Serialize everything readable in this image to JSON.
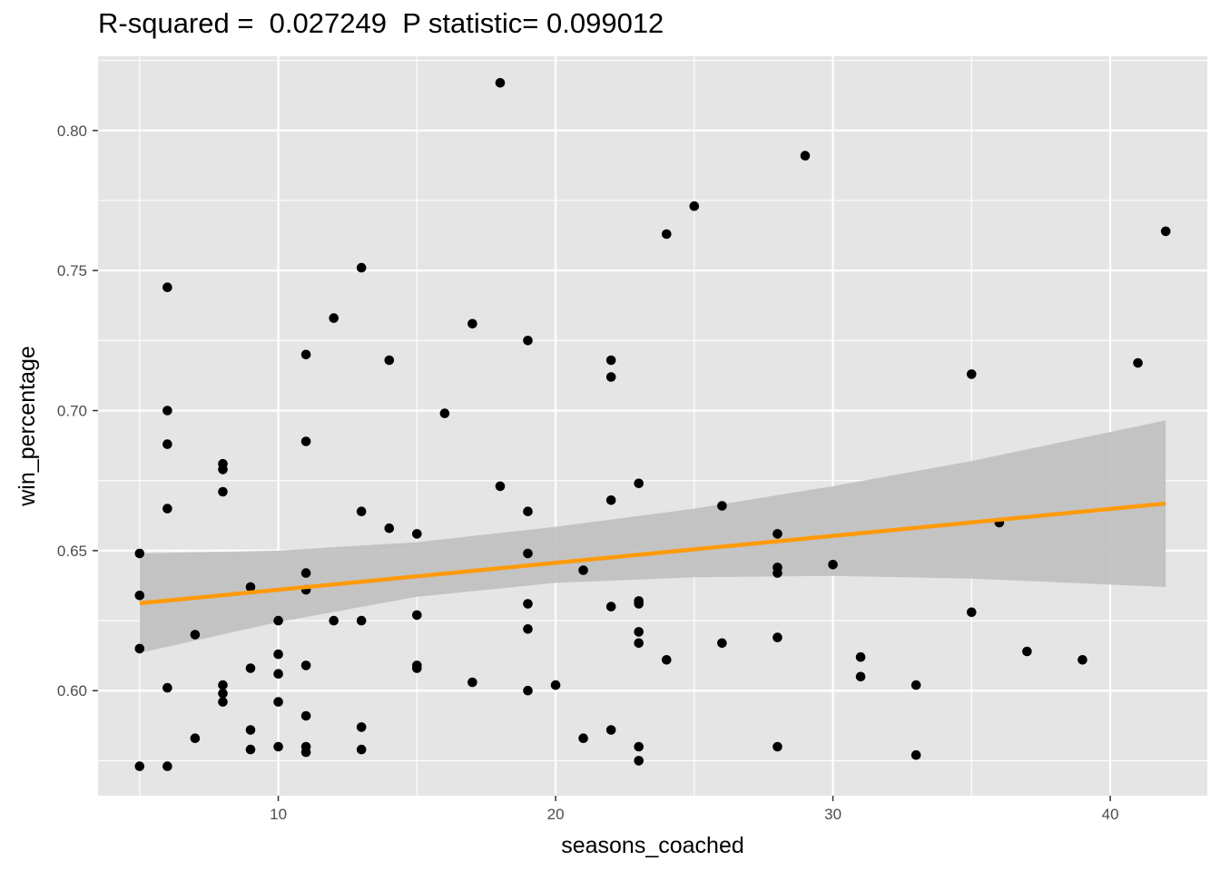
{
  "chart_data": {
    "type": "scatter",
    "title": "R-squared =  0.027249  P statistic= 0.099012",
    "xlabel": "seasons_coached",
    "ylabel": "win_percentage",
    "xlim": [
      3.5,
      43.5
    ],
    "ylim": [
      0.5625,
      0.8265
    ],
    "x_ticks": [
      10,
      20,
      30,
      40
    ],
    "y_ticks": [
      0.6,
      0.65,
      0.7,
      0.75,
      0.8
    ],
    "x_tick_labels": [
      "10",
      "20",
      "30",
      "40"
    ],
    "y_tick_labels": [
      "0.60",
      "0.65",
      "0.70",
      "0.75",
      "0.80"
    ],
    "grid": true,
    "colors": {
      "panel": "#e5e5e5",
      "grid": "#ffffff",
      "points": "#000000",
      "fit_line": "#ff9a0a",
      "ci_band": "#bfbfbf"
    },
    "points": [
      {
        "x": 5,
        "y": 0.649
      },
      {
        "x": 5,
        "y": 0.634
      },
      {
        "x": 5,
        "y": 0.615
      },
      {
        "x": 5,
        "y": 0.573
      },
      {
        "x": 6,
        "y": 0.744
      },
      {
        "x": 6,
        "y": 0.7
      },
      {
        "x": 6,
        "y": 0.688
      },
      {
        "x": 6,
        "y": 0.665
      },
      {
        "x": 6,
        "y": 0.601
      },
      {
        "x": 6,
        "y": 0.573
      },
      {
        "x": 7,
        "y": 0.62
      },
      {
        "x": 7,
        "y": 0.583
      },
      {
        "x": 8,
        "y": 0.681
      },
      {
        "x": 8,
        "y": 0.679
      },
      {
        "x": 8,
        "y": 0.671
      },
      {
        "x": 8,
        "y": 0.602
      },
      {
        "x": 8,
        "y": 0.599
      },
      {
        "x": 8,
        "y": 0.596
      },
      {
        "x": 9,
        "y": 0.637
      },
      {
        "x": 9,
        "y": 0.608
      },
      {
        "x": 9,
        "y": 0.586
      },
      {
        "x": 9,
        "y": 0.579
      },
      {
        "x": 10,
        "y": 0.625
      },
      {
        "x": 10,
        "y": 0.613
      },
      {
        "x": 10,
        "y": 0.606
      },
      {
        "x": 10,
        "y": 0.596
      },
      {
        "x": 10,
        "y": 0.58
      },
      {
        "x": 11,
        "y": 0.72
      },
      {
        "x": 11,
        "y": 0.689
      },
      {
        "x": 11,
        "y": 0.642
      },
      {
        "x": 11,
        "y": 0.636
      },
      {
        "x": 11,
        "y": 0.609
      },
      {
        "x": 11,
        "y": 0.591
      },
      {
        "x": 11,
        "y": 0.58
      },
      {
        "x": 11,
        "y": 0.578
      },
      {
        "x": 12,
        "y": 0.733
      },
      {
        "x": 12,
        "y": 0.625
      },
      {
        "x": 13,
        "y": 0.751
      },
      {
        "x": 13,
        "y": 0.664
      },
      {
        "x": 13,
        "y": 0.625
      },
      {
        "x": 13,
        "y": 0.587
      },
      {
        "x": 13,
        "y": 0.579
      },
      {
        "x": 14,
        "y": 0.718
      },
      {
        "x": 14,
        "y": 0.658
      },
      {
        "x": 15,
        "y": 0.656
      },
      {
        "x": 15,
        "y": 0.627
      },
      {
        "x": 15,
        "y": 0.609
      },
      {
        "x": 15,
        "y": 0.608
      },
      {
        "x": 16,
        "y": 0.699
      },
      {
        "x": 17,
        "y": 0.731
      },
      {
        "x": 17,
        "y": 0.603
      },
      {
        "x": 18,
        "y": 0.817
      },
      {
        "x": 18,
        "y": 0.673
      },
      {
        "x": 19,
        "y": 0.725
      },
      {
        "x": 19,
        "y": 0.664
      },
      {
        "x": 19,
        "y": 0.649
      },
      {
        "x": 19,
        "y": 0.631
      },
      {
        "x": 19,
        "y": 0.622
      },
      {
        "x": 19,
        "y": 0.6
      },
      {
        "x": 20,
        "y": 0.602
      },
      {
        "x": 21,
        "y": 0.643
      },
      {
        "x": 21,
        "y": 0.583
      },
      {
        "x": 22,
        "y": 0.718
      },
      {
        "x": 22,
        "y": 0.712
      },
      {
        "x": 22,
        "y": 0.668
      },
      {
        "x": 22,
        "y": 0.63
      },
      {
        "x": 22,
        "y": 0.586
      },
      {
        "x": 23,
        "y": 0.674
      },
      {
        "x": 23,
        "y": 0.632
      },
      {
        "x": 23,
        "y": 0.631
      },
      {
        "x": 23,
        "y": 0.621
      },
      {
        "x": 23,
        "y": 0.617
      },
      {
        "x": 23,
        "y": 0.58
      },
      {
        "x": 23,
        "y": 0.575
      },
      {
        "x": 24,
        "y": 0.763
      },
      {
        "x": 24,
        "y": 0.611
      },
      {
        "x": 25,
        "y": 0.773
      },
      {
        "x": 26,
        "y": 0.666
      },
      {
        "x": 26,
        "y": 0.617
      },
      {
        "x": 28,
        "y": 0.656
      },
      {
        "x": 28,
        "y": 0.644
      },
      {
        "x": 28,
        "y": 0.642
      },
      {
        "x": 28,
        "y": 0.619
      },
      {
        "x": 28,
        "y": 0.58
      },
      {
        "x": 29,
        "y": 0.791
      },
      {
        "x": 30,
        "y": 0.645
      },
      {
        "x": 31,
        "y": 0.612
      },
      {
        "x": 31,
        "y": 0.605
      },
      {
        "x": 33,
        "y": 0.602
      },
      {
        "x": 33,
        "y": 0.577
      },
      {
        "x": 35,
        "y": 0.713
      },
      {
        "x": 35,
        "y": 0.628
      },
      {
        "x": 36,
        "y": 0.66
      },
      {
        "x": 37,
        "y": 0.614
      },
      {
        "x": 39,
        "y": 0.611
      },
      {
        "x": 41,
        "y": 0.717
      },
      {
        "x": 42,
        "y": 0.764
      }
    ],
    "fit_line": {
      "x": [
        5,
        42
      ],
      "y": [
        0.6312,
        0.6668
      ]
    },
    "confidence_band": {
      "x": [
        5,
        10,
        15,
        20,
        25,
        30,
        35,
        42
      ],
      "lower": [
        0.6135,
        0.6245,
        0.6335,
        0.6385,
        0.6405,
        0.641,
        0.64,
        0.637
      ],
      "upper": [
        0.649,
        0.65,
        0.653,
        0.6585,
        0.665,
        0.673,
        0.682,
        0.6965
      ]
    }
  }
}
